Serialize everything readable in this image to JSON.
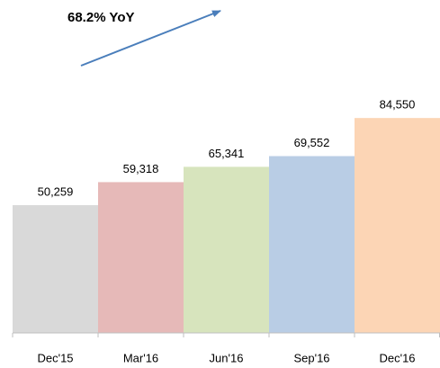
{
  "chart_data": {
    "type": "bar",
    "annotation": "68.2% YoY",
    "categories": [
      "Dec'15",
      "Mar'16",
      "Jun'16",
      "Sep'16",
      "Dec'16"
    ],
    "values": [
      50259,
      59318,
      65341,
      69552,
      84550
    ],
    "value_labels": [
      "50,259",
      "59,318",
      "65,341",
      "69,552",
      "84,550"
    ],
    "colors": [
      "#d9d9d9",
      "#e6b9b8",
      "#d7e4bd",
      "#b9cde5",
      "#fcd5b5"
    ],
    "ylim": [
      0,
      100000
    ]
  }
}
